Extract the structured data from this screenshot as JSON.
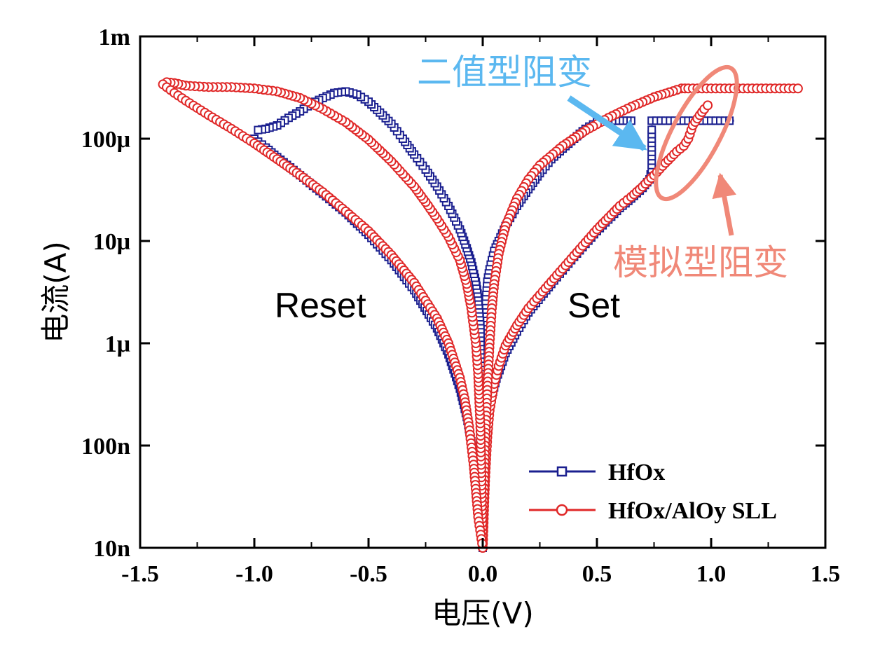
{
  "chart_data": {
    "type": "line",
    "xlabel": "电压(V)",
    "ylabel": "电流(A)",
    "xlim": [
      -1.5,
      1.5
    ],
    "ylim": [
      1e-08,
      0.001
    ],
    "yscale": "log",
    "grid": false,
    "legend_position": "bottom-right",
    "x_ticks": [
      -1.5,
      -1.0,
      -0.5,
      0.0,
      0.5,
      1.0,
      1.5
    ],
    "x_tick_labels": [
      "-1.5",
      "-1.0",
      "-0.5",
      "0.0",
      "0.5",
      "1.0",
      "1.5"
    ],
    "y_ticks": [
      1e-08,
      1e-07,
      1e-06,
      1e-05,
      0.0001,
      0.001
    ],
    "y_tick_labels": [
      "10n",
      "100n",
      "1μ",
      "10μ",
      "100μ",
      "1m"
    ],
    "region_labels": [
      {
        "text": "Reset",
        "x": -0.95,
        "y": 2.5e-06
      },
      {
        "text": "Set",
        "x": 0.5,
        "y": 2.5e-06
      }
    ],
    "annotations": [
      {
        "text": "二值型阻变",
        "color": "#5bb8f0"
      },
      {
        "text": "模拟型阻变",
        "color": "#f08878"
      }
    ],
    "series": [
      {
        "name": "HfOx",
        "color": "#1a1f8f",
        "marker": "square",
        "segments": [
          {
            "x": [
              0.0,
              0.01,
              0.03,
              0.06,
              0.1,
              0.15,
              0.2,
              0.3,
              0.4,
              0.5,
              0.6,
              0.65,
              0.7,
              0.73,
              0.74
            ],
            "y": [
              1e-08,
              6e-08,
              2.5e-07,
              4.5e-07,
              8e-07,
              1.3e-06,
              2e-06,
              3.8e-06,
              7e-06,
              1.25e-05,
              2.1e-05,
              2.6e-05,
              3.3e-05,
              4e-05,
              5e-05
            ]
          },
          {
            "x": [
              0.74,
              0.74
            ],
            "y": [
              5e-05,
              0.000135
            ]
          },
          {
            "x": [
              0.74,
              0.8,
              0.9,
              1.0,
              1.1
            ],
            "y": [
              0.00015,
              0.00015,
              0.00015,
              0.00015,
              0.00015
            ]
          },
          {
            "x": [
              0.65,
              0.6,
              0.55,
              0.5,
              0.45,
              0.4,
              0.35,
              0.3,
              0.25,
              0.2,
              0.15,
              0.1,
              0.07,
              0.05,
              0.03,
              0.02,
              0.01,
              0.0
            ],
            "y": [
              0.00015,
              0.00015,
              0.00015,
              0.000145,
              0.000125,
              0.0001,
              8e-05,
              6.3e-05,
              4.6e-05,
              3.2e-05,
              2.2e-05,
              1.4e-05,
              1e-05,
              8e-06,
              5.3e-06,
              4e-06,
              2e-06,
              1e-08
            ]
          },
          {
            "x": [
              0.0,
              -0.01,
              -0.02,
              -0.03,
              -0.05,
              -0.07,
              -0.1,
              -0.15,
              -0.2,
              -0.25,
              -0.3,
              -0.35,
              -0.4,
              -0.45,
              -0.5,
              -0.55,
              -0.6,
              -0.65,
              -0.7,
              -0.75,
              -0.8,
              -0.85,
              -0.9,
              -0.95,
              -1.0
            ],
            "y": [
              1e-08,
              1.5e-06,
              2.8e-06,
              4e-06,
              6.2e-06,
              8.5e-06,
              1.3e-05,
              2.2e-05,
              3.4e-05,
              5e-05,
              7e-05,
              0.0001,
              0.00014,
              0.00018,
              0.00023,
              0.00027,
              0.00029,
              0.00028,
              0.00025,
              0.00022,
              0.000185,
              0.00016,
              0.000135,
              0.000125,
              0.00012
            ]
          },
          {
            "x": [
              -1.0,
              -0.95,
              -0.9,
              -0.8,
              -0.7,
              -0.6,
              -0.5,
              -0.4,
              -0.3,
              -0.2,
              -0.15,
              -0.1,
              -0.07,
              -0.05,
              -0.03,
              -0.01,
              0.0
            ],
            "y": [
              0.0001,
              8.2e-05,
              6.6e-05,
              4.4e-05,
              2.9e-05,
              1.9e-05,
              1.15e-05,
              6.5e-06,
              3.3e-06,
              1.4e-06,
              7.8e-07,
              3.6e-07,
              1.9e-07,
              1.1e-07,
              5e-08,
              2e-08,
              1e-08
            ]
          }
        ]
      },
      {
        "name": "HfOx/AlOy SLL",
        "color": "#e02828",
        "marker": "circle",
        "segments": [
          {
            "x": [
              0.0,
              0.01,
              0.02,
              0.03,
              0.05,
              0.07,
              0.1,
              0.15,
              0.2,
              0.3,
              0.4,
              0.5,
              0.6,
              0.65,
              0.7,
              0.75,
              0.8,
              0.85,
              0.88,
              0.9,
              0.92,
              0.95,
              0.97,
              1.0
            ],
            "y": [
              1e-08,
              4.5e-08,
              1.2e-07,
              2.2e-07,
              4e-07,
              6e-07,
              9.5e-07,
              1.5e-06,
              2.2e-06,
              4e-06,
              7.2e-06,
              1.3e-05,
              2.2e-05,
              2.7e-05,
              3.4e-05,
              4.4e-05,
              5.8e-05,
              7.5e-05,
              8.5e-05,
              0.0001,
              0.000135,
              0.00017,
              0.000195,
              0.00023
            ]
          },
          {
            "x": [
              0.87,
              0.9,
              1.0,
              1.1,
              1.2,
              1.3,
              1.4
            ],
            "y": [
              0.00031,
              0.00031,
              0.00031,
              0.00031,
              0.00031,
              0.00031,
              0.00031
            ]
          },
          {
            "x": [
              0.85,
              0.75,
              0.65,
              0.55,
              0.45,
              0.35,
              0.25,
              0.2,
              0.15,
              0.1,
              0.07,
              0.05,
              0.04,
              0.03,
              0.02,
              0.01,
              0.0
            ],
            "y": [
              0.0003,
              0.000255,
              0.000205,
              0.00016,
              0.00012,
              8.5e-05,
              5.5e-05,
              4e-05,
              2.6e-05,
              1.4e-05,
              7.5e-06,
              3.8e-06,
              2.2e-06,
              1e-06,
              3.5e-07,
              1e-07,
              1e-08
            ]
          },
          {
            "x": [
              0.0,
              -0.01,
              -0.02,
              -0.03,
              -0.05,
              -0.07,
              -0.1,
              -0.15,
              -0.2,
              -0.25,
              -0.3,
              -0.4,
              -0.5,
              -0.6,
              -0.7,
              -0.8,
              -0.9,
              -1.0,
              -1.1,
              -1.2,
              -1.3,
              -1.35,
              -1.4
            ],
            "y": [
              1e-08,
              1.5e-07,
              5e-07,
              1e-06,
              2.2e-06,
              3.8e-06,
              6.5e-06,
              1.1e-05,
              1.65e-05,
              2.4e-05,
              3.4e-05,
              6e-05,
              9.8e-05,
              0.000145,
              0.000195,
              0.00025,
              0.00029,
              0.00031,
              0.00032,
              0.00032,
              0.00033,
              0.00035,
              0.00036
            ]
          },
          {
            "x": [
              -1.4,
              -1.35,
              -1.3,
              -1.2,
              -1.1,
              -1.0,
              -0.9,
              -0.8,
              -0.7,
              -0.6,
              -0.5,
              -0.4,
              -0.3,
              -0.2,
              -0.15,
              -0.1,
              -0.08,
              -0.06,
              -0.04,
              -0.02,
              0.0
            ],
            "y": [
              0.00034,
              0.00028,
              0.000235,
              0.00017,
              0.000125,
              9e-05,
              6.3e-05,
              4.4e-05,
              3e-05,
              1.95e-05,
              1.25e-05,
              7.3e-06,
              3.9e-06,
              1.75e-06,
              1e-06,
              4.6e-07,
              2.9e-07,
              1.55e-07,
              6.5e-08,
              2e-08,
              1e-08
            ]
          }
        ]
      }
    ]
  }
}
